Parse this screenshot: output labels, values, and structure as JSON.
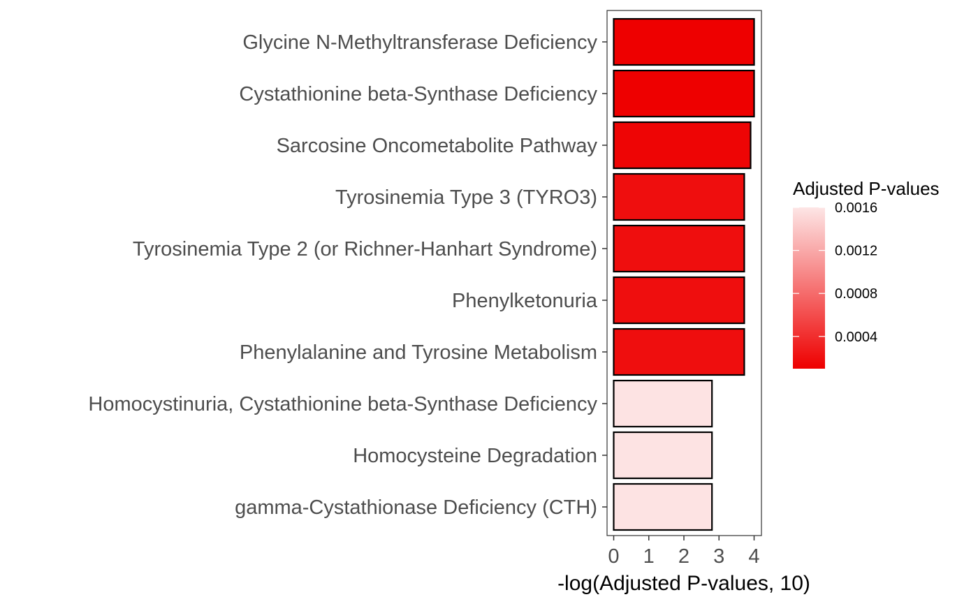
{
  "chart_data": {
    "type": "bar",
    "orientation": "horizontal",
    "categories": [
      "Glycine N-Methyltransferase Deficiency",
      "Cystathionine beta-Synthase Deficiency",
      "Sarcosine Oncometabolite Pathway",
      "Tyrosinemia Type 3 (TYRO3)",
      "Tyrosinemia Type 2 (or Richner-Hanhart Syndrome)",
      "Phenylketonuria",
      "Phenylalanine and Tyrosine Metabolism",
      "Homocystinuria, Cystathionine beta-Synthase Deficiency",
      "Homocysteine Degradation",
      "gamma-Cystathionase Deficiency (CTH)"
    ],
    "values": [
      4.0,
      4.0,
      3.9,
      3.72,
      3.72,
      3.72,
      3.72,
      2.8,
      2.8,
      2.8
    ],
    "color_values": [
      0.0001,
      0.0001,
      0.00013,
      0.00019,
      0.00019,
      0.00019,
      0.00019,
      0.00158,
      0.00158,
      0.00158
    ],
    "xlabel": "-log(Adjusted P-values, 10)",
    "ylabel": "",
    "xlim": [
      0,
      4.2
    ],
    "x_ticks": [
      "0",
      "1",
      "2",
      "3",
      "4"
    ],
    "grid": false,
    "legend": {
      "title": "Adjusted P-values",
      "position": "right",
      "ticks": [
        "0.0016",
        "0.0012",
        "0.0008",
        "0.0004"
      ],
      "range": [
        0.0001,
        0.0016
      ],
      "low_color": "#ee0000",
      "high_color": "#fde6e6"
    },
    "colors": {
      "bar_outline": "#000000",
      "panel_border": "#333333"
    }
  }
}
